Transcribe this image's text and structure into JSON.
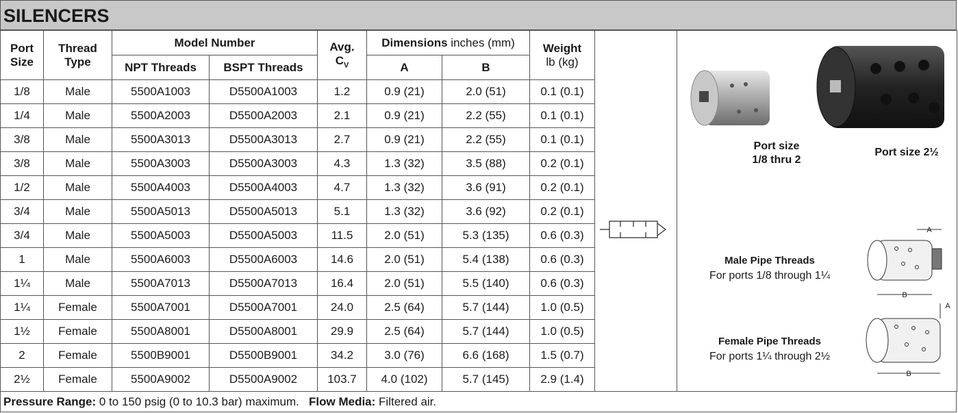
{
  "header": {
    "title": "SILENCERS"
  },
  "table": {
    "headers": {
      "port": [
        "Port",
        "Size"
      ],
      "thread": [
        "Thread",
        "Type"
      ],
      "model": "Model Number",
      "npt": "NPT Threads",
      "bspt": "BSPT Threads",
      "avg": "Avg.",
      "cv": "C",
      "cv_sub": "V",
      "dims": "Dimensions",
      "dims_units": "inches (mm)",
      "a": "A",
      "b": "B",
      "weight": "Weight",
      "weight_units": "lb (kg)"
    },
    "rows": [
      [
        "1/8",
        "Male",
        "5500A1003",
        "D5500A1003",
        "1.2",
        "0.9 (21)",
        "2.0 (51)",
        "0.1 (0.1)"
      ],
      [
        "1/4",
        "Male",
        "5500A2003",
        "D5500A2003",
        "2.1",
        "0.9 (21)",
        "2.2 (55)",
        "0.1 (0.1)"
      ],
      [
        "3/8",
        "Male",
        "5500A3013",
        "D5500A3013",
        "2.7",
        "0.9 (21)",
        "2.2 (55)",
        "0.1 (0.1)"
      ],
      [
        "3/8",
        "Male",
        "5500A3003",
        "D5500A3003",
        "4.3",
        "1.3 (32)",
        "3.5 (88)",
        "0.2 (0.1)"
      ],
      [
        "1/2",
        "Male",
        "5500A4003",
        "D5500A4003",
        "4.7",
        "1.3 (32)",
        "3.6 (91)",
        "0.2 (0.1)"
      ],
      [
        "3/4",
        "Male",
        "5500A5013",
        "D5500A5013",
        "5.1",
        "1.3 (32)",
        "3.6 (92)",
        "0.2 (0.1)"
      ],
      [
        "3/4",
        "Male",
        "5500A5003",
        "D5500A5003",
        "11.5",
        "2.0 (51)",
        "5.3 (135)",
        "0.6 (0.3)"
      ],
      [
        "1",
        "Male",
        "5500A6003",
        "D5500A6003",
        "14.6",
        "2.0 (51)",
        "5.4 (138)",
        "0.6 (0.3)"
      ],
      [
        "1¼",
        "Male",
        "5500A7013",
        "D5500A7013",
        "16.4",
        "2.0 (51)",
        "5.5 (140)",
        "0.6 (0.3)"
      ],
      [
        "1¼",
        "Female",
        "5500A7001",
        "D5500A7001",
        "24.0",
        "2.5 (64)",
        "5.7 (144)",
        "1.0 (0.5)"
      ],
      [
        "1½",
        "Female",
        "5500A8001",
        "D5500A8001",
        "29.9",
        "2.5 (64)",
        "5.7 (144)",
        "1.0 (0.5)"
      ],
      [
        "2",
        "Female",
        "5500B9001",
        "D5500B9001",
        "34.2",
        "3.0 (76)",
        "6.6 (168)",
        "1.5 (0.7)"
      ],
      [
        "2½",
        "Female",
        "5500A9002",
        "D5500A9002",
        "103.7",
        "4.0 (102)",
        "5.7 (145)",
        "2.9 (1.4)"
      ]
    ]
  },
  "images": {
    "small_caption": [
      "Port size",
      "1/8 thru 2"
    ],
    "large_caption": "Port size 2½",
    "male_title": "Male Pipe Threads",
    "male_text": "For ports 1/8 through 1¼",
    "female_title": "Female Pipe Threads",
    "female_text": "For ports 1¼ through 2½",
    "dim_a": "A",
    "dim_b": "B"
  },
  "footer": {
    "pressure_label": "Pressure Range:",
    "pressure_text": "0 to 150 psig (0 to 10.3 bar) maximum.",
    "flow_label": "Flow Media:",
    "flow_text": "Filtered air."
  }
}
